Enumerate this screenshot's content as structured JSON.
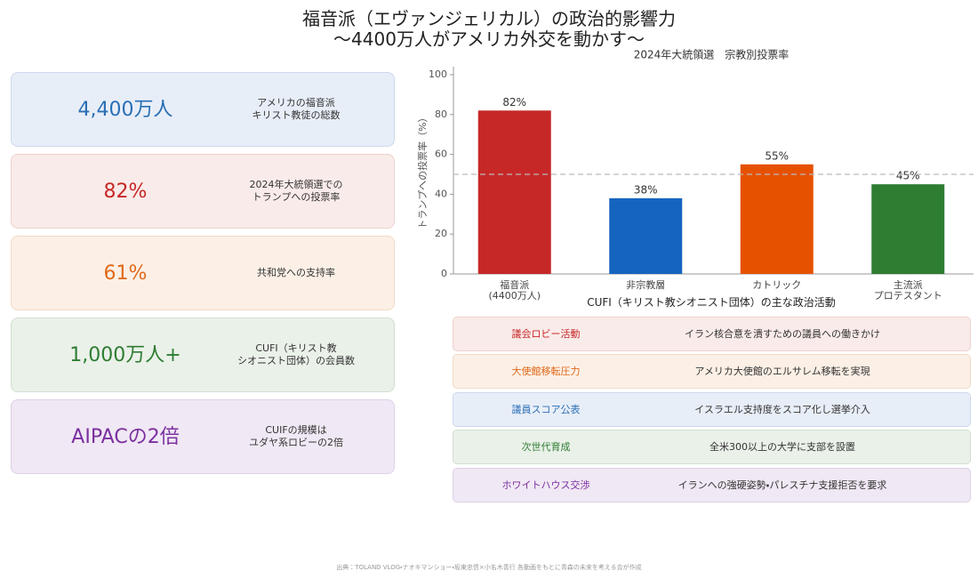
{
  "header": {
    "title": "福音派（エヴァンジェリカル）の政治的影響力",
    "subtitle": "〜4400万人がアメリカ外交を動かす〜"
  },
  "stats": [
    {
      "value": "4,400万人",
      "label": "アメリカの福音派\nキリスト教徒の総数"
    },
    {
      "value": "82%",
      "label": "2024年大統領選での\nトランプへの投票率"
    },
    {
      "value": "61%",
      "label": "共和党への支持率"
    },
    {
      "value": "1,000万人+",
      "label": "CUFI（キリスト教\nシオニスト団体）の会員数"
    },
    {
      "value": "AIPACの2倍",
      "label": "CUIFの規模は\nユダヤ系ロビーの2倍"
    }
  ],
  "chart_data": {
    "type": "bar",
    "title": "2024年大統領選　宗教別投票率",
    "y_label": "トランプへの投票率（%）",
    "categories": [
      "福音派\n(4400万人)",
      "非宗教層",
      "カトリック",
      "主流派\nプロテスタント"
    ],
    "values": [
      82,
      38,
      55,
      45
    ],
    "value_labels": [
      "82%",
      "38%",
      "55%",
      "45%"
    ],
    "colors": [
      "#c62828",
      "#1565c0",
      "#e65100",
      "#2e7d32"
    ],
    "ylim": [
      0,
      104
    ],
    "yticks": [
      0,
      20,
      40,
      60,
      80,
      100
    ],
    "reference_line": 50
  },
  "activities": {
    "title": "CUFI（キリスト教シオニスト団体）の主な政治活動",
    "items": [
      {
        "name": "議会ロビー活動",
        "description": "イラン核合意を潰すための議員への働きかけ"
      },
      {
        "name": "大使館移転圧力",
        "description": "アメリカ大使館のエルサレム移転を実現"
      },
      {
        "name": "議員スコア公表",
        "description": "イスラエル支持度をスコア化し選挙介入"
      },
      {
        "name": "次世代育成",
        "description": "全米300以上の大学に支部を設置"
      },
      {
        "name": "ホワイトハウス交渉",
        "description": "イランへの強硬姿勢・パレスチナ支援拒否を要求"
      }
    ]
  },
  "footer": {
    "source": "出典：TOLAND VLOG・ナオキマンショー・坂東忠信×小名木善行 各動画をもとに青森の未来を考える会が作成"
  }
}
